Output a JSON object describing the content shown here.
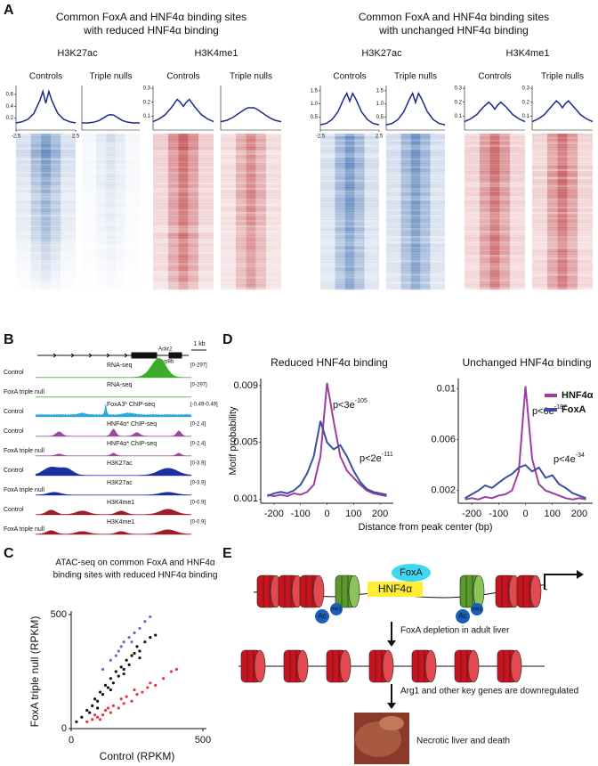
{
  "panel_labels": [
    "A",
    "B",
    "C",
    "D",
    "E"
  ],
  "panel_a": {
    "groups": [
      {
        "title": [
          "Common FoxA and HNF4α binding sites",
          "with reduced HNF4α binding"
        ],
        "marks": [
          "H3K27ac",
          "H3K4me1"
        ]
      },
      {
        "title": [
          "Common FoxA and HNF4α binding sites",
          "with unchanged HNF4α binding"
        ],
        "marks": [
          "H3K27ac",
          "H3K4me1"
        ]
      }
    ]
  },
  "panel_b": {
    "genes": [
      "Ackr2",
      "Cyp8b"
    ],
    "scale": "1 kb",
    "tracks": [
      {
        "sample": "Control",
        "assay": "RNA-seq",
        "range": "[0-297]",
        "color": "#3aad2a"
      },
      {
        "sample": "FoxA triple null",
        "assay": "RNA-seq",
        "range": "[0-297]",
        "color": "#3aad2a"
      },
      {
        "sample": "Control",
        "assay": "FoxA3* ChIP-seq",
        "range": "[-0.49-0.49]",
        "color": "#29a8e0"
      },
      {
        "sample": "Control",
        "assay": "HNF4α* ChIP-seq",
        "range": "[0-2.4]",
        "color": "#9b4a9b"
      },
      {
        "sample": "FoxA triple null",
        "assay": "HNF4α* ChIP-seq",
        "range": "[0-2.4]",
        "color": "#9b4a9b"
      },
      {
        "sample": "Control",
        "assay": "H3K27ac",
        "range": "[0-3.9]",
        "color": "#1a2fa0"
      },
      {
        "sample": "FoxA triple null",
        "assay": "H3K27ac",
        "range": "[0-3.9]",
        "color": "#1a2fa0"
      },
      {
        "sample": "Control",
        "assay": "H3K4me1",
        "range": "[0-0.9]",
        "color": "#a01a2a"
      },
      {
        "sample": "FoxA triple null",
        "assay": "H3K4me1",
        "range": "[0-0.9]",
        "color": "#a01a2a"
      }
    ]
  },
  "panel_d": {
    "ylabel": "Motif  probability",
    "xlabel": "Distance from peak center (bp)"
  },
  "panel_e": {
    "foxa": "FoxA",
    "hnf4a": "HNF4α",
    "marks": [
      "Ac",
      "me1"
    ],
    "steps": [
      "FoxA depletion in adult liver",
      "Arg1 and other key genes are downregulated",
      "Necrotic liver and death"
    ]
  },
  "chart_data": [
    {
      "type": "line",
      "title": "Controls",
      "x": [
        -2.5,
        -2,
        -1.5,
        -1,
        -0.5,
        -0.25,
        0,
        0.25,
        0.5,
        1,
        1.5,
        2,
        2.5
      ],
      "xlim": [
        -2.5,
        2.5
      ],
      "xticks": [
        -2.5,
        2.5
      ],
      "ylim": [
        0,
        0.75
      ],
      "yticks": [
        0.2,
        0.4,
        0.6
      ],
      "series": [
        {
          "color": "#1a2a8a",
          "values": [
            0.12,
            0.14,
            0.18,
            0.28,
            0.5,
            0.65,
            0.45,
            0.65,
            0.5,
            0.28,
            0.18,
            0.14,
            0.12
          ]
        }
      ]
    },
    {
      "type": "line",
      "title": "Triple nulls",
      "x": [
        -2.5,
        -2,
        -1.5,
        -1,
        -0.5,
        -0.25,
        0,
        0.25,
        0.5,
        1,
        1.5,
        2,
        2.5
      ],
      "xlim": [
        -2.5,
        2.5
      ],
      "ylim": [
        0,
        0.75
      ],
      "series": [
        {
          "color": "#1a2a8a",
          "values": [
            0.12,
            0.12,
            0.13,
            0.16,
            0.22,
            0.25,
            0.26,
            0.25,
            0.22,
            0.16,
            0.13,
            0.12,
            0.12
          ]
        }
      ]
    },
    {
      "type": "line",
      "title": "Controls",
      "x": [
        -2.5,
        -2,
        -1.5,
        -1,
        -0.5,
        -0.25,
        0,
        0.25,
        0.5,
        1,
        1.5,
        2,
        2.5
      ],
      "xlim": [
        -2.5,
        2.5
      ],
      "ylim": [
        0,
        0.32
      ],
      "yticks": [
        0.1,
        0.2,
        0.3
      ],
      "series": [
        {
          "color": "#1a2a8a",
          "values": [
            0.06,
            0.08,
            0.11,
            0.16,
            0.22,
            0.2,
            0.17,
            0.2,
            0.22,
            0.16,
            0.11,
            0.08,
            0.06
          ]
        }
      ]
    },
    {
      "type": "line",
      "title": "Triple nulls",
      "x": [
        -2.5,
        -2,
        -1.5,
        -1,
        -0.5,
        -0.25,
        0,
        0.25,
        0.5,
        1,
        1.5,
        2,
        2.5
      ],
      "xlim": [
        -2.5,
        2.5
      ],
      "ylim": [
        0,
        0.32
      ],
      "series": [
        {
          "color": "#1a2a8a",
          "values": [
            0.06,
            0.07,
            0.09,
            0.12,
            0.15,
            0.16,
            0.16,
            0.16,
            0.15,
            0.12,
            0.09,
            0.07,
            0.06
          ]
        }
      ]
    },
    {
      "type": "line",
      "title": "Controls",
      "x": [
        -2.5,
        -2,
        -1.5,
        -1,
        -0.5,
        -0.25,
        0,
        0.25,
        0.5,
        1,
        1.5,
        2,
        2.5
      ],
      "xlim": [
        -2.5,
        2.5
      ],
      "xticks": [
        -2.5,
        2.5
      ],
      "ylim": [
        0,
        1.7
      ],
      "yticks": [
        0.5,
        {
          "value": 1,
          "label": "1.0"
        },
        1.5
      ],
      "series": [
        {
          "color": "#1a2a8a",
          "values": [
            0.2,
            0.25,
            0.4,
            0.7,
            1.2,
            1.4,
            1.1,
            1.4,
            1.2,
            0.7,
            0.4,
            0.25,
            0.2
          ]
        }
      ]
    },
    {
      "type": "line",
      "title": "Triple nulls",
      "x": [
        -2.5,
        -2,
        -1.5,
        -1,
        -0.5,
        -0.25,
        0,
        0.25,
        0.5,
        1,
        1.5,
        2,
        2.5
      ],
      "xlim": [
        -2.5,
        2.5
      ],
      "ylim": [
        0,
        1.7
      ],
      "yticks": [
        0.5,
        {
          "value": 1,
          "label": "1.0"
        },
        1.5
      ],
      "series": [
        {
          "color": "#1a2a8a",
          "values": [
            0.2,
            0.25,
            0.4,
            0.7,
            1.2,
            1.4,
            1.05,
            1.4,
            1.2,
            0.7,
            0.4,
            0.25,
            0.2
          ]
        }
      ]
    },
    {
      "type": "line",
      "title": "Controls",
      "x": [
        -2.5,
        -2,
        -1.5,
        -1,
        -0.5,
        -0.25,
        0,
        0.25,
        0.5,
        1,
        1.5,
        2,
        2.5
      ],
      "xlim": [
        -2.5,
        2.5
      ],
      "ylim": [
        0,
        0.32
      ],
      "yticks": [
        0.1,
        0.2,
        0.3
      ],
      "series": [
        {
          "color": "#1a2a8a",
          "values": [
            0.06,
            0.08,
            0.11,
            0.16,
            0.2,
            0.18,
            0.15,
            0.18,
            0.2,
            0.16,
            0.11,
            0.08,
            0.06
          ]
        }
      ]
    },
    {
      "type": "line",
      "title": "Triple nulls",
      "x": [
        -2.5,
        -2,
        -1.5,
        -1,
        -0.5,
        -0.25,
        0,
        0.25,
        0.5,
        1,
        1.5,
        2,
        2.5
      ],
      "xlim": [
        -2.5,
        2.5
      ],
      "ylim": [
        0,
        0.32
      ],
      "yticks": [
        0.1,
        0.2,
        0.3
      ],
      "series": [
        {
          "color": "#1a2a8a",
          "values": [
            0.06,
            0.08,
            0.11,
            0.16,
            0.21,
            0.19,
            0.16,
            0.19,
            0.21,
            0.16,
            0.11,
            0.08,
            0.06
          ]
        }
      ]
    },
    {
      "type": "line",
      "title": "Reduced HNF4α binding",
      "x": [
        -225,
        -200,
        -175,
        -150,
        -125,
        -100,
        -75,
        -50,
        -25,
        0,
        25,
        50,
        75,
        100,
        125,
        150,
        175,
        200,
        225
      ],
      "xlim": [
        -250,
        250
      ],
      "xticks": [
        -200,
        -100,
        0,
        100,
        200
      ],
      "ylim": [
        0.0007,
        0.0095
      ],
      "yticks": [
        0.001,
        0.005,
        0.009
      ],
      "series": [
        {
          "color": "#9b3fa0",
          "values": [
            0.0013,
            0.0012,
            0.0013,
            0.0012,
            0.0014,
            0.0013,
            0.0015,
            0.002,
            0.004,
            0.0092,
            0.0065,
            0.004,
            0.003,
            0.0025,
            0.002,
            0.0016,
            0.0014,
            0.0013,
            0.0012
          ]
        },
        {
          "color": "#3b4fa0",
          "values": [
            0.0012,
            0.0014,
            0.0015,
            0.0014,
            0.0016,
            0.002,
            0.0028,
            0.004,
            0.0065,
            0.005,
            0.0045,
            0.0048,
            0.004,
            0.003,
            0.0022,
            0.0017,
            0.0015,
            0.0014,
            0.0013
          ]
        }
      ],
      "annotations": [
        {
          "text": "p<3e",
          "sup": "-105"
        },
        {
          "text": "p<2e",
          "sup": "-111"
        }
      ]
    },
    {
      "type": "line",
      "title": "Unchanged HNF4α binding",
      "x": [
        -225,
        -200,
        -175,
        -150,
        -125,
        -100,
        -75,
        -50,
        -25,
        0,
        25,
        50,
        75,
        100,
        125,
        150,
        175,
        200,
        225
      ],
      "xlim": [
        -250,
        250
      ],
      "xticks": [
        -200,
        -100,
        0,
        100,
        200
      ],
      "ylim": [
        0.001,
        0.0108
      ],
      "yticks": [
        0.002,
        0.006,
        0.01
      ],
      "legend": "top-right",
      "series": [
        {
          "name": "HNF4α",
          "color": "#9b3fa0",
          "values": [
            0.0013,
            0.0014,
            0.0013,
            0.0015,
            0.0014,
            0.0016,
            0.0017,
            0.002,
            0.0035,
            0.0102,
            0.0045,
            0.0025,
            0.002,
            0.0018,
            0.0016,
            0.0014,
            0.0013,
            0.0014,
            0.0013
          ]
        },
        {
          "name": "FoxA",
          "color": "#3b4fa0",
          "values": [
            0.0014,
            0.0017,
            0.002,
            0.0024,
            0.0022,
            0.0026,
            0.003,
            0.0033,
            0.0038,
            0.004,
            0.0035,
            0.0038,
            0.003,
            0.0032,
            0.0025,
            0.0022,
            0.0018,
            0.0016,
            0.0014
          ]
        }
      ],
      "annotations": [
        {
          "text": "p<6e",
          "sup": "-187"
        },
        {
          "text": "p<4e",
          "sup": "-34"
        }
      ]
    },
    {
      "type": "scatter",
      "title": [
        "ATAC-seq on common FoxA and HNF4α",
        "binding sites with reduced HNF4α binding"
      ],
      "xlabel": "Control (RPKM)",
      "ylabel": "FoxA triple null (RPKM)",
      "xlim": [
        0,
        500
      ],
      "ylim": [
        0,
        500
      ],
      "xticks": [
        0,
        500
      ],
      "yticks": [
        0,
        500
      ],
      "series": [
        {
          "color": "#111111",
          "x": [
            20,
            40,
            60,
            80,
            90,
            100,
            110,
            120,
            130,
            140,
            150,
            160,
            170,
            180,
            190,
            200,
            210,
            220,
            230,
            240,
            250,
            260,
            280,
            300,
            320,
            70,
            100,
            150,
            200,
            260
          ],
          "values": [
            30,
            50,
            80,
            100,
            130,
            120,
            160,
            150,
            190,
            180,
            220,
            200,
            250,
            230,
            270,
            260,
            300,
            280,
            320,
            330,
            360,
            340,
            380,
            400,
            410,
            70,
            90,
            170,
            240,
            310
          ]
        },
        {
          "color": "#e8383d",
          "x": [
            60,
            80,
            100,
            120,
            130,
            150,
            160,
            180,
            200,
            210,
            230,
            250,
            270,
            290,
            300,
            320,
            350,
            380,
            400,
            110,
            140,
            190,
            240,
            90
          ],
          "values": [
            30,
            40,
            50,
            60,
            80,
            70,
            100,
            90,
            110,
            140,
            120,
            150,
            160,
            180,
            200,
            190,
            220,
            250,
            260,
            40,
            90,
            130,
            170,
            60
          ]
        },
        {
          "color": "#6a6acf",
          "x": [
            120,
            150,
            180,
            200,
            220,
            240,
            260,
            280,
            300,
            170,
            190,
            230
          ],
          "values": [
            260,
            300,
            340,
            380,
            400,
            420,
            440,
            470,
            490,
            320,
            360,
            380
          ]
        }
      ]
    }
  ]
}
